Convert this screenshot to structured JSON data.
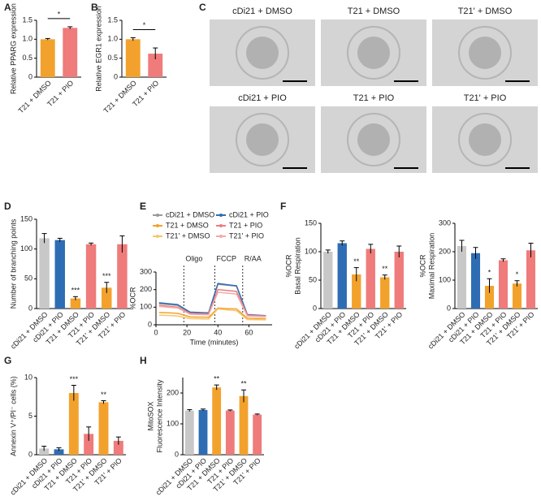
{
  "images": {
    "label": "C",
    "captions": [
      "cDi21 + DMSO",
      "T21 + DMSO",
      "T21' + DMSO",
      "cDi21 + PIO",
      "T21 + PIO",
      "T21' + PIO"
    ]
  },
  "chart_data": [
    {
      "type": "bar",
      "label": "A",
      "ylabel": [
        "Relative PPARG expression"
      ],
      "categories": [
        "T21 + DMSO",
        "T21 + PIO"
      ],
      "values": [
        1.0,
        1.3
      ],
      "errors": [
        0.02,
        0.03
      ],
      "colors": [
        "#f2a22c",
        "#ef7b7b"
      ],
      "ylim": [
        0,
        1.5
      ],
      "yticks": [
        0,
        0.5,
        {
          "value": 1,
          "label": "1.0"
        },
        1.5
      ],
      "significance": "*"
    },
    {
      "type": "bar",
      "label": "B",
      "ylabel": [
        "Relative EGR1 expression"
      ],
      "categories": [
        "T21 + DMSO",
        "T21 + PIO"
      ],
      "values": [
        1.0,
        0.62
      ],
      "errors": [
        0.04,
        0.15
      ],
      "colors": [
        "#f2a22c",
        "#ef7b7b"
      ],
      "ylim": [
        0,
        1.5
      ],
      "yticks": [
        0,
        0.5,
        {
          "value": 1,
          "label": "1.0"
        },
        1.5
      ],
      "significance": "*"
    },
    {
      "type": "bar",
      "label": "D",
      "ylabel": [
        "Number of branching points"
      ],
      "categories": [
        "cDi21 + DMSO",
        "cDi21 + PIO",
        "T21 + DMSO",
        "T21 + PIO",
        "T21' + DMSO",
        "T21' + PIO"
      ],
      "values": [
        118,
        115,
        17,
        108,
        35,
        108
      ],
      "errors": [
        8,
        3,
        3,
        2,
        9,
        14
      ],
      "colors": [
        "#c8c8c8",
        "#2e6db4",
        "#f2a22c",
        "#ef7b7b",
        "#f2a22c",
        "#ef7b7b"
      ],
      "ylim": [
        0,
        150
      ],
      "yticks": [
        0,
        50,
        100,
        150
      ],
      "annotations": [
        null,
        null,
        "***",
        null,
        "***",
        null
      ]
    },
    {
      "type": "line",
      "label": "E",
      "ylabel": [
        "%OCR"
      ],
      "xlabel": "Time (minutes)",
      "x": [
        2,
        8,
        14,
        22,
        28,
        34,
        40,
        46,
        52,
        59,
        65,
        71
      ],
      "xlim": [
        0,
        75
      ],
      "xticks": [
        0,
        20,
        40,
        60
      ],
      "ylim": [
        0,
        300
      ],
      "yticks": [
        0,
        100,
        200,
        300
      ],
      "phases": [
        {
          "x": 18,
          "label": "Oligo"
        },
        {
          "x": 38,
          "label": "FCCP"
        },
        {
          "x": 56,
          "label": "R/AA"
        }
      ],
      "series": [
        {
          "name": "cDi21 + DMSO",
          "color": "#999999",
          "values": [
            120,
            115,
            110,
            70,
            68,
            67,
            230,
            225,
            220,
            55,
            52,
            50
          ]
        },
        {
          "name": "cDi21 + PIO",
          "color": "#2e6db4",
          "values": [
            125,
            120,
            115,
            72,
            70,
            68,
            235,
            228,
            222,
            58,
            55,
            52
          ]
        },
        {
          "name": "T21 + DMSO",
          "color": "#f2a22c",
          "values": [
            70,
            68,
            65,
            45,
            44,
            43,
            95,
            92,
            90,
            38,
            36,
            35
          ]
        },
        {
          "name": "T21 + PIO",
          "color": "#ef7b7b",
          "values": [
            110,
            105,
            100,
            65,
            63,
            62,
            200,
            195,
            190,
            55,
            52,
            50
          ]
        },
        {
          "name": "T21' + DMSO",
          "color": "#f7c56b",
          "values": [
            55,
            53,
            50,
            35,
            34,
            33,
            90,
            85,
            80,
            30,
            29,
            28
          ]
        },
        {
          "name": "T21' + PIO",
          "color": "#f4a9a9",
          "values": [
            105,
            100,
            96,
            60,
            58,
            57,
            185,
            180,
            175,
            50,
            48,
            46
          ]
        }
      ]
    },
    {
      "type": "bar",
      "label": "F",
      "ylabel": [
        "%OCR",
        "Basal Respiration"
      ],
      "categories": [
        "cDi21 + DMSO",
        "cDi21 + PIO",
        "T21 + DMSO",
        "T21 + PIO",
        "T21' + DMSO",
        "T21' + PIO"
      ],
      "values": [
        100,
        115,
        60,
        105,
        55,
        100
      ],
      "errors": [
        3,
        4,
        12,
        8,
        4,
        10
      ],
      "colors": [
        "#c8c8c8",
        "#2e6db4",
        "#f2a22c",
        "#ef7b7b",
        "#f2a22c",
        "#ef7b7b"
      ],
      "ylim": [
        0,
        150
      ],
      "yticks": [
        0,
        50,
        100,
        150
      ],
      "annotations": [
        null,
        null,
        "**",
        null,
        "**",
        null
      ]
    },
    {
      "type": "bar",
      "ylabel": [
        "%OCR",
        "Maximal Respiration"
      ],
      "categories": [
        "cDi21 + DMSO",
        "cDi21 + PIO",
        "T21 + DMSO",
        "T21 + PIO",
        "T21' + DMSO",
        "T21' + PIO"
      ],
      "values": [
        220,
        195,
        80,
        170,
        88,
        205
      ],
      "errors": [
        20,
        20,
        25,
        5,
        10,
        25
      ],
      "colors": [
        "#c8c8c8",
        "#2e6db4",
        "#f2a22c",
        "#ef7b7b",
        "#f2a22c",
        "#ef7b7b"
      ],
      "ylim": [
        0,
        300
      ],
      "yticks": [
        0,
        100,
        200,
        300
      ],
      "annotations": [
        null,
        null,
        "*",
        null,
        "*",
        null
      ]
    },
    {
      "type": "bar",
      "label": "G",
      "ylabel": [
        "Annexin V⁺/PI⁻ cells (%)"
      ],
      "categories": [
        "cDi21 + DMSO",
        "cDi21 + PIO",
        "T21 + DMSO",
        "T21 + PIO",
        "T21' + DMSO",
        "T21' + PIO"
      ],
      "values": [
        0.8,
        0.7,
        8,
        2.7,
        6.8,
        1.8
      ],
      "errors": [
        0.3,
        0.2,
        1.0,
        0.9,
        0.2,
        0.5
      ],
      "colors": [
        "#c8c8c8",
        "#2e6db4",
        "#f2a22c",
        "#ef7b7b",
        "#f2a22c",
        "#ef7b7b"
      ],
      "ylim": [
        0,
        10
      ],
      "yticks": [
        0,
        5,
        10
      ],
      "annotations": [
        null,
        null,
        "***",
        null,
        "**",
        null
      ]
    },
    {
      "type": "bar",
      "label": "H",
      "ylabel": [
        "MitoSOX",
        "Fluorescence Intensity"
      ],
      "categories": [
        "cDi21 + DMSO",
        "cDi21 + PIO",
        "T21 + DMSO",
        "T21 + PIO",
        "T21' + DMSO",
        "T21' + PIO"
      ],
      "values": [
        143,
        145,
        218,
        143,
        190,
        130
      ],
      "errors": [
        3,
        3,
        8,
        2,
        20,
        2
      ],
      "colors": [
        "#c8c8c8",
        "#2e6db4",
        "#f2a22c",
        "#ef7b7b",
        "#f2a22c",
        "#ef7b7b"
      ],
      "ylim": [
        0,
        250
      ],
      "yticks": [
        0,
        100,
        200
      ],
      "annotations": [
        null,
        null,
        "**",
        null,
        "**",
        null
      ]
    }
  ]
}
